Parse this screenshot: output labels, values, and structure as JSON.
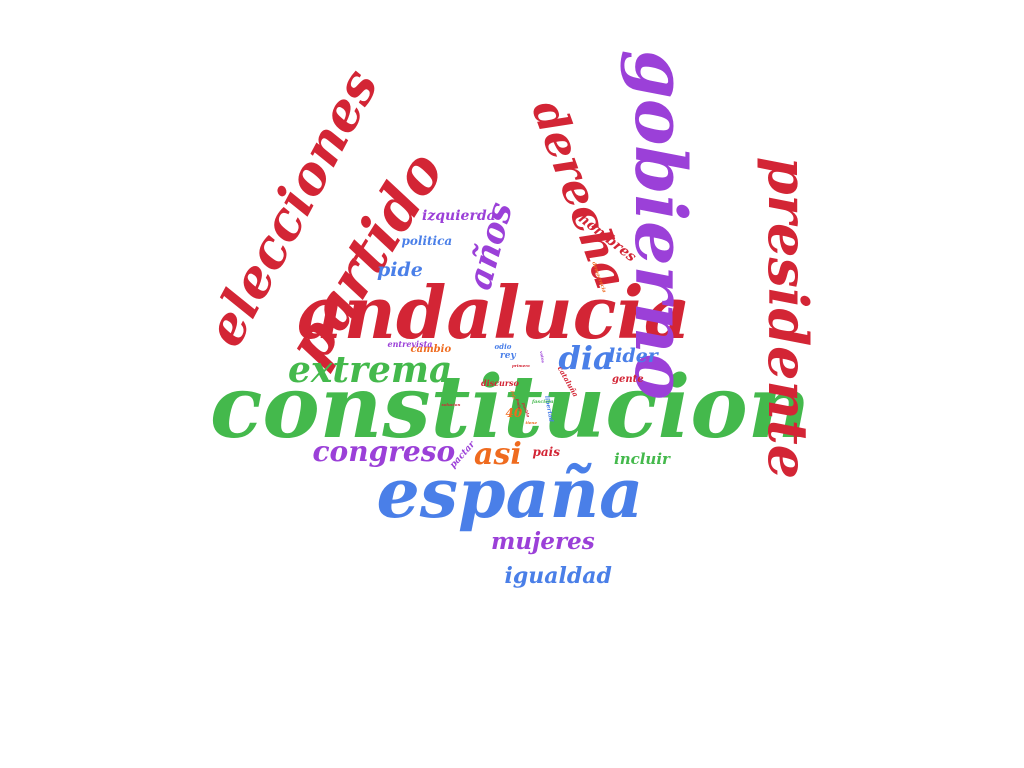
{
  "colors": {
    "red": "#d32535",
    "purple": "#9b40d8",
    "green": "#44b94c",
    "blue": "#4a7fe8",
    "orange": "#ef6b1f"
  },
  "words": [
    {
      "id": "constitucion",
      "text": "constitucion",
      "color": "green"
    },
    {
      "id": "andalucia",
      "text": "andalucia",
      "color": "red"
    },
    {
      "id": "espana",
      "text": "españa",
      "color": "blue"
    },
    {
      "id": "gobierno",
      "text": "gobierno",
      "color": "purple"
    },
    {
      "id": "presidente",
      "text": "presidente",
      "color": "red"
    },
    {
      "id": "elecciones",
      "text": "elecciones",
      "color": "red"
    },
    {
      "id": "partido",
      "text": "partido",
      "color": "red"
    },
    {
      "id": "derecha",
      "text": "derecha",
      "color": "red"
    },
    {
      "id": "extrema",
      "text": "extrema",
      "color": "green"
    },
    {
      "id": "anos",
      "text": "años",
      "color": "purple"
    },
    {
      "id": "congreso",
      "text": "congreso",
      "color": "purple"
    },
    {
      "id": "asi",
      "text": "asi",
      "color": "orange"
    },
    {
      "id": "dia",
      "text": "dia",
      "color": "blue"
    },
    {
      "id": "mujeres",
      "text": "mujeres",
      "color": "purple"
    },
    {
      "id": "igualdad",
      "text": "igualdad",
      "color": "blue"
    },
    {
      "id": "pide",
      "text": "pide",
      "color": "blue"
    },
    {
      "id": "lider",
      "text": "lider",
      "color": "blue"
    },
    {
      "id": "izquierda",
      "text": "izquierda",
      "color": "purple"
    },
    {
      "id": "politica",
      "text": "politica",
      "color": "blue"
    },
    {
      "id": "hombres",
      "text": "hombres",
      "color": "red"
    },
    {
      "id": "incluir",
      "text": "incluir",
      "color": "green"
    },
    {
      "id": "pais",
      "text": "pais",
      "color": "red"
    },
    {
      "id": "pactar",
      "text": "pactar",
      "color": "purple"
    },
    {
      "id": "cambio",
      "text": "cambio",
      "color": "orange"
    },
    {
      "id": "entrevista",
      "text": "entrevista",
      "color": "purple"
    },
    {
      "id": "gente",
      "text": "gente",
      "color": "red"
    },
    {
      "id": "odio",
      "text": "odio",
      "color": "blue"
    },
    {
      "id": "rey",
      "text": "rey",
      "color": "blue"
    },
    {
      "id": "discurso",
      "text": "discurso",
      "color": "red"
    },
    {
      "id": "cataluna",
      "text": "cataluña",
      "color": "red"
    },
    {
      "id": "n40",
      "text": "40",
      "color": "orange"
    },
    {
      "id": "libertad",
      "text": "libertad",
      "color": "blue"
    },
    {
      "id": "fascista",
      "text": "fascista",
      "color": "green"
    },
    {
      "id": "democracia",
      "text": "democracia",
      "color": "orange"
    },
    {
      "id": "votos",
      "text": "votos",
      "color": "purple"
    },
    {
      "id": "poder",
      "text": "poder",
      "color": "red"
    },
    {
      "id": "pueblo",
      "text": "pueblo",
      "color": "red"
    },
    {
      "id": "jefe",
      "text": "jefe",
      "color": "orange"
    },
    {
      "id": "solucion",
      "text": "solucion",
      "color": "red"
    },
    {
      "id": "tiene",
      "text": "tiene",
      "color": "orange"
    },
    {
      "id": "primera",
      "text": "primera",
      "color": "red"
    }
  ]
}
